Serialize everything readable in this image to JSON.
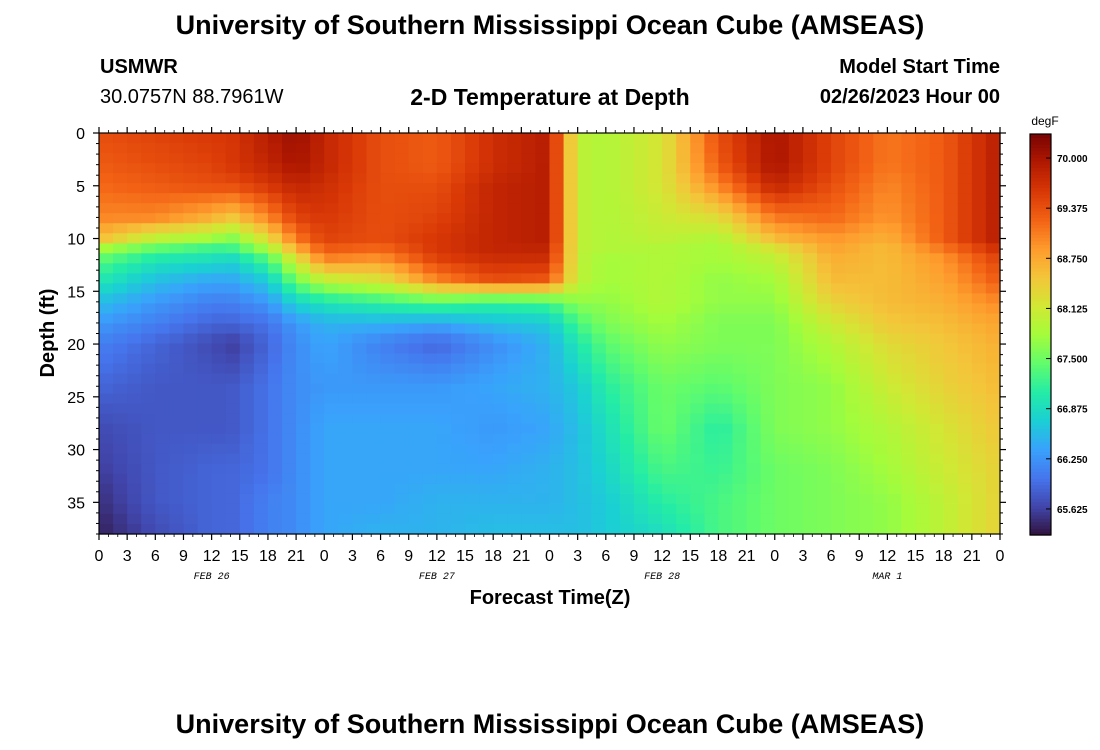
{
  "header": {
    "title": "University of Southern Mississippi Ocean Cube (AMSEAS)",
    "station": "USMWR",
    "coords": "30.0757N  88.7961W",
    "subtitle": "2-D Temperature at Depth",
    "model_start_label": "Model Start Time",
    "model_start_value": "02/26/2023 Hour 00"
  },
  "footer": {
    "title": "University of Southern Mississippi Ocean Cube (AMSEAS)"
  },
  "chart_data": {
    "type": "heatmap",
    "title": "2-D Temperature at Depth",
    "xlabel": "Forecast Time(Z)",
    "ylabel": "Depth (ft)",
    "x_hours_range": [
      0,
      96
    ],
    "y_range": [
      0,
      38
    ],
    "y_ticks": [
      "0",
      "5",
      "10",
      "15",
      "20",
      "25",
      "30",
      "35"
    ],
    "y_tick_values": [
      0,
      5,
      10,
      15,
      20,
      25,
      30,
      35
    ],
    "x_tick_labels": [
      "0",
      "3",
      "6",
      "9",
      "12",
      "15",
      "18",
      "21",
      "0",
      "3",
      "6",
      "9",
      "12",
      "15",
      "18",
      "21",
      "0",
      "3",
      "6",
      "9",
      "12",
      "15",
      "18",
      "21",
      "0",
      "3",
      "6",
      "9",
      "12",
      "15",
      "18",
      "21",
      "0"
    ],
    "date_labels": [
      {
        "label": "FEB 26",
        "hour": 12
      },
      {
        "label": "FEB 27",
        "hour": 36
      },
      {
        "label": "FEB 28",
        "hour": 60
      },
      {
        "label": "MAR 1",
        "hour": 84
      }
    ],
    "colorbar": {
      "unit": "degF",
      "min": 65.3,
      "max": 70.3,
      "tick_labels": [
        "70.000",
        "69.375",
        "68.750",
        "68.125",
        "67.500",
        "66.875",
        "66.250",
        "65.625"
      ],
      "tick_values": [
        70.0,
        69.375,
        68.75,
        68.125,
        67.5,
        66.875,
        66.25,
        65.625
      ]
    },
    "colormap": [
      "#30123b",
      "#4145ab",
      "#4675ed",
      "#39a2fc",
      "#1bcfd4",
      "#24eca6",
      "#61fc6c",
      "#a4fc3b",
      "#d1e834",
      "#f3c63a",
      "#fe9b2d",
      "#f36315",
      "#d93806",
      "#b11901",
      "#7a0403"
    ],
    "grid_depths": [
      0,
      3,
      5,
      8,
      10,
      11,
      12,
      14,
      16,
      18,
      20,
      24,
      28,
      32,
      35,
      38
    ],
    "grid_hours": [
      0,
      6,
      12,
      14,
      18,
      21,
      24,
      30,
      36,
      42,
      48,
      51,
      54,
      60,
      66,
      72,
      78,
      84,
      90,
      96
    ],
    "temperature_values": [
      [
        69.4,
        69.5,
        69.6,
        69.6,
        69.9,
        70.1,
        69.8,
        69.4,
        69.3,
        69.7,
        69.9,
        68.0,
        67.9,
        68.2,
        69.4,
        70.0,
        69.5,
        69.1,
        69.3,
        69.9
      ],
      [
        69.3,
        69.4,
        69.5,
        69.6,
        69.8,
        70.0,
        69.8,
        69.4,
        69.3,
        69.7,
        69.9,
        68.0,
        67.9,
        68.2,
        69.3,
        70.0,
        69.5,
        69.1,
        69.3,
        69.9
      ],
      [
        69.2,
        69.3,
        69.4,
        69.4,
        69.6,
        69.8,
        69.7,
        69.4,
        69.4,
        69.8,
        69.9,
        68.0,
        67.9,
        68.2,
        69.0,
        69.8,
        69.4,
        69.0,
        69.3,
        69.9
      ],
      [
        69.0,
        69.0,
        68.7,
        68.5,
        69.0,
        69.5,
        69.6,
        69.4,
        69.5,
        69.8,
        69.9,
        68.0,
        67.9,
        68.1,
        68.3,
        69.1,
        69.2,
        68.9,
        69.3,
        69.9
      ],
      [
        68.6,
        68.0,
        67.8,
        67.6,
        68.3,
        69.1,
        69.5,
        69.4,
        69.6,
        69.8,
        69.9,
        68.0,
        67.9,
        68.0,
        67.9,
        68.6,
        68.9,
        68.7,
        69.3,
        69.9
      ],
      [
        67.8,
        67.4,
        67.2,
        67.2,
        67.8,
        68.7,
        69.3,
        69.2,
        69.6,
        69.8,
        69.8,
        68.0,
        67.9,
        67.9,
        67.8,
        68.2,
        68.8,
        68.6,
        69.1,
        69.7
      ],
      [
        67.4,
        67.0,
        66.9,
        66.8,
        67.3,
        68.2,
        69.0,
        68.9,
        69.5,
        69.7,
        69.7,
        68.0,
        67.8,
        67.9,
        67.8,
        68.0,
        68.7,
        68.6,
        68.9,
        69.5
      ],
      [
        67.0,
        66.6,
        66.4,
        66.4,
        66.7,
        67.5,
        68.0,
        68.2,
        69.0,
        69.4,
        69.3,
        68.0,
        67.8,
        67.9,
        67.7,
        67.8,
        68.6,
        68.6,
        68.8,
        69.3
      ],
      [
        66.6,
        66.3,
        66.1,
        66.1,
        66.3,
        66.8,
        67.0,
        67.2,
        67.4,
        67.2,
        67.3,
        67.7,
        67.7,
        67.9,
        67.7,
        67.7,
        68.4,
        68.6,
        68.7,
        69.0
      ],
      [
        66.3,
        66.1,
        65.9,
        65.9,
        66.0,
        66.3,
        66.5,
        66.5,
        66.4,
        66.6,
        66.7,
        67.3,
        67.6,
        67.8,
        67.6,
        67.6,
        68.1,
        68.5,
        68.6,
        68.8
      ],
      [
        66.1,
        65.9,
        65.7,
        65.6,
        65.9,
        66.2,
        66.4,
        66.1,
        65.9,
        66.2,
        66.5,
        67.0,
        67.4,
        67.7,
        67.6,
        67.6,
        67.9,
        68.3,
        68.5,
        68.7
      ],
      [
        65.9,
        65.8,
        65.8,
        65.8,
        66.0,
        66.2,
        66.3,
        66.3,
        66.3,
        66.4,
        66.5,
        66.7,
        67.1,
        67.5,
        67.4,
        67.6,
        67.7,
        68.1,
        68.4,
        68.6
      ],
      [
        65.7,
        65.8,
        65.8,
        65.8,
        66.0,
        66.2,
        66.4,
        66.4,
        66.4,
        66.3,
        66.4,
        66.6,
        66.9,
        67.5,
        67.1,
        67.6,
        67.7,
        67.9,
        68.2,
        68.5
      ],
      [
        65.6,
        65.8,
        65.9,
        65.9,
        66.0,
        66.2,
        66.4,
        66.4,
        66.4,
        66.4,
        66.5,
        66.6,
        66.8,
        67.3,
        67.2,
        67.5,
        67.6,
        67.8,
        68.1,
        68.4
      ],
      [
        65.5,
        65.8,
        65.9,
        65.9,
        66.1,
        66.2,
        66.4,
        66.4,
        66.5,
        66.5,
        66.5,
        66.6,
        66.7,
        67.1,
        67.3,
        67.5,
        67.6,
        67.7,
        68.0,
        68.4
      ],
      [
        65.4,
        65.7,
        65.9,
        65.9,
        66.1,
        66.2,
        66.4,
        66.5,
        66.5,
        66.6,
        66.6,
        66.6,
        66.7,
        66.9,
        67.3,
        67.5,
        67.6,
        67.7,
        68.0,
        68.4
      ]
    ]
  }
}
